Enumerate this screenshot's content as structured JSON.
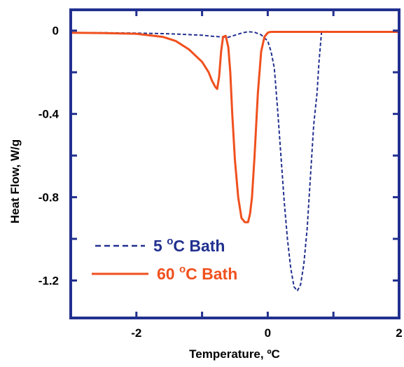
{
  "chart_data": {
    "type": "line",
    "xlabel": "Temperature, ºC",
    "ylabel": "Heat Flow, W/g",
    "xlim": [
      -3,
      2
    ],
    "ylim": [
      -1.38,
      0.1
    ],
    "xticks": [
      -2,
      0,
      2
    ],
    "xtick_labels": [
      "-2",
      "0",
      "2"
    ],
    "yticks": [
      0,
      -0.4,
      -0.8,
      -1.2
    ],
    "ytick_labels": [
      "0",
      "-0.4",
      "-0.8",
      "-1.2"
    ],
    "minor_xticks": [
      -1,
      1
    ],
    "minor_yticks": [
      -0.2,
      -0.6,
      -1.0
    ],
    "grid": false,
    "legend_position": "lower-left",
    "frame_color": "#22308f",
    "series": [
      {
        "legend_prefix": "5 ",
        "legend_degree": "o",
        "legend_suffix": "C Bath",
        "color": "#22308f",
        "style": "dashed",
        "x": [
          -3.0,
          -2.5,
          -2.0,
          -1.5,
          -1.0,
          -0.8,
          -0.6,
          -0.4,
          -0.3,
          -0.2,
          -0.1,
          0.0,
          0.05,
          0.1,
          0.15,
          0.2,
          0.25,
          0.3,
          0.35,
          0.4,
          0.45,
          0.5,
          0.55,
          0.6,
          0.65,
          0.7,
          0.75,
          0.78,
          0.82,
          0.9,
          1.2,
          1.6,
          2.0
        ],
        "y": [
          -0.01,
          -0.01,
          -0.012,
          -0.015,
          -0.022,
          -0.028,
          -0.032,
          -0.012,
          -0.005,
          -0.008,
          -0.02,
          -0.05,
          -0.1,
          -0.18,
          -0.38,
          -0.6,
          -0.82,
          -1.0,
          -1.14,
          -1.23,
          -1.25,
          -1.22,
          -1.12,
          -0.95,
          -0.7,
          -0.45,
          -0.3,
          -0.15,
          -0.005,
          -0.004,
          -0.005,
          -0.005,
          -0.005
        ]
      },
      {
        "legend_prefix": "60 ",
        "legend_degree": "o",
        "legend_suffix": "C Bath",
        "color": "#f0501e",
        "style": "solid",
        "x": [
          -3.0,
          -2.5,
          -2.0,
          -1.6,
          -1.4,
          -1.2,
          -1.0,
          -0.9,
          -0.85,
          -0.8,
          -0.77,
          -0.74,
          -0.71,
          -0.68,
          -0.64,
          -0.6,
          -0.57,
          -0.54,
          -0.5,
          -0.45,
          -0.4,
          -0.35,
          -0.3,
          -0.27,
          -0.24,
          -0.2,
          -0.15,
          -0.1,
          -0.05,
          0.0,
          0.03,
          0.06,
          0.1,
          0.5,
          1.0,
          1.5,
          2.0
        ],
        "y": [
          -0.01,
          -0.012,
          -0.015,
          -0.03,
          -0.05,
          -0.09,
          -0.15,
          -0.2,
          -0.24,
          -0.27,
          -0.28,
          -0.22,
          -0.1,
          -0.03,
          -0.025,
          -0.08,
          -0.2,
          -0.4,
          -0.62,
          -0.8,
          -0.9,
          -0.92,
          -0.92,
          -0.88,
          -0.8,
          -0.6,
          -0.3,
          -0.1,
          -0.03,
          -0.01,
          -0.007,
          -0.006,
          -0.006,
          -0.006,
          -0.006,
          -0.006,
          -0.006
        ]
      }
    ]
  }
}
